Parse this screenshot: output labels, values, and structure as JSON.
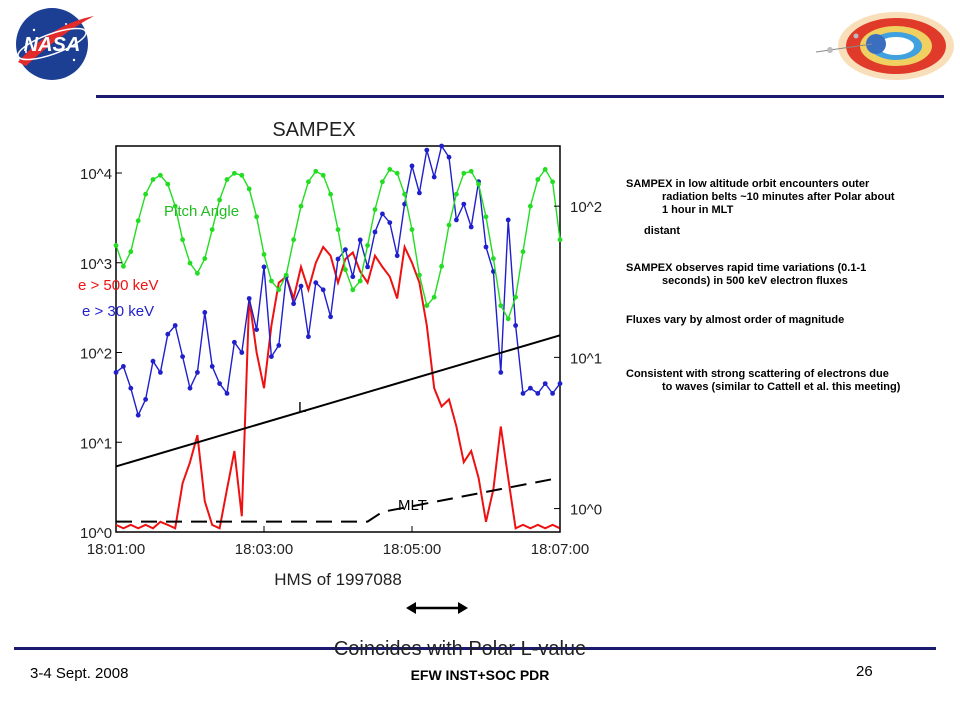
{
  "logos": {
    "nasa_text": "NASA"
  },
  "notes": [
    {
      "first": "SAMPEX in low altitude orbit encounters  outer",
      "rest": [
        "radiation belts ~10 minutes after Polar about",
        "1 hour in MLT"
      ],
      "extra": "distant"
    },
    {
      "first": "SAMPEX observes rapid time variations (0.1-1",
      "rest": [
        "seconds) in 500 keV electron fluxes"
      ]
    },
    {
      "first": "Fluxes vary by almost order of magnitude",
      "rest": []
    },
    {
      "first": "Consistent with strong scattering of electrons due",
      "rest": [
        "to waves (similar to Cattell et al. this meeting)"
      ]
    }
  ],
  "caption": "Coincides  with Polar L-value",
  "footer": {
    "date": "3-4 Sept. 2008",
    "center": "EFW INST+SOC PDR",
    "page": "26"
  },
  "chart_data": {
    "type": "line",
    "title": "SAMPEX",
    "xlabel": "HMS of 1997088",
    "x_ticks": [
      "18:01:00",
      "18:03:00",
      "18:05:00",
      "18:07:00"
    ],
    "x_range_min": [
      0,
      6
    ],
    "left_axis": {
      "scale": "log",
      "range": [
        1,
        20000
      ],
      "ticks": [
        "10^0",
        "10^1",
        "10^2",
        "10^3",
        "10^4"
      ]
    },
    "right_axis": {
      "scale": "log",
      "range": [
        0.7,
        250
      ],
      "ticks": [
        "10^0",
        "10^1",
        "10^2"
      ]
    },
    "series": [
      {
        "name": "Pitch Angle",
        "color": "#22dd22",
        "axis": "right",
        "marker": "dot",
        "x": [
          0.0,
          0.1,
          0.2,
          0.3,
          0.4,
          0.5,
          0.6,
          0.7,
          0.8,
          0.9,
          1.0,
          1.1,
          1.2,
          1.3,
          1.4,
          1.5,
          1.6,
          1.7,
          1.8,
          1.9,
          2.0,
          2.1,
          2.2,
          2.3,
          2.4,
          2.5,
          2.6,
          2.7,
          2.8,
          2.9,
          3.0,
          3.1,
          3.2,
          3.3,
          3.4,
          3.5,
          3.6,
          3.7,
          3.8,
          3.9,
          4.0,
          4.1,
          4.2,
          4.3,
          4.4,
          4.5,
          4.6,
          4.7,
          4.8,
          4.9,
          5.0,
          5.1,
          5.2,
          5.3,
          5.4,
          5.5,
          5.6,
          5.7,
          5.8,
          5.9,
          6.0
        ],
        "y": [
          55,
          40,
          50,
          80,
          120,
          150,
          160,
          140,
          100,
          60,
          42,
          36,
          45,
          70,
          110,
          150,
          165,
          160,
          130,
          85,
          48,
          32,
          28,
          35,
          60,
          100,
          145,
          170,
          160,
          120,
          70,
          38,
          28,
          32,
          55,
          95,
          145,
          175,
          165,
          120,
          70,
          35,
          22,
          25,
          40,
          75,
          120,
          165,
          170,
          140,
          85,
          45,
          22,
          18,
          25,
          50,
          100,
          150,
          175,
          145,
          60
        ]
      },
      {
        "name": "e > 30 keV",
        "color": "#1f1fcc",
        "axis": "left",
        "marker": "dot",
        "x": [
          0.0,
          0.1,
          0.2,
          0.3,
          0.4,
          0.5,
          0.6,
          0.7,
          0.8,
          0.9,
          1.0,
          1.1,
          1.2,
          1.3,
          1.4,
          1.5,
          1.6,
          1.7,
          1.8,
          1.9,
          2.0,
          2.1,
          2.2,
          2.3,
          2.4,
          2.5,
          2.6,
          2.7,
          2.8,
          2.9,
          3.0,
          3.1,
          3.2,
          3.3,
          3.4,
          3.5,
          3.6,
          3.7,
          3.8,
          3.9,
          4.0,
          4.1,
          4.2,
          4.3,
          4.4,
          4.5,
          4.6,
          4.7,
          4.8,
          4.9,
          5.0,
          5.1,
          5.2,
          5.3,
          5.4,
          5.5,
          5.6,
          5.7,
          5.8,
          5.9,
          6.0
        ],
        "y": [
          60,
          70,
          40,
          20,
          30,
          80,
          60,
          160,
          200,
          90,
          40,
          60,
          280,
          70,
          45,
          35,
          130,
          100,
          400,
          180,
          900,
          90,
          120,
          700,
          350,
          550,
          150,
          600,
          500,
          250,
          1100,
          1400,
          700,
          1800,
          900,
          2200,
          3500,
          2800,
          1200,
          4500,
          12000,
          6000,
          18000,
          9000,
          20000,
          15000,
          3000,
          4500,
          2500,
          8000,
          1500,
          800,
          60,
          3000,
          200,
          35,
          40,
          35,
          45,
          35,
          45
        ]
      },
      {
        "name": "e > 500 keV",
        "color": "#ee1111",
        "axis": "left",
        "marker": "none",
        "x": [
          0.0,
          0.1,
          0.2,
          0.3,
          0.4,
          0.5,
          0.6,
          0.7,
          0.8,
          0.9,
          1.0,
          1.1,
          1.2,
          1.3,
          1.4,
          1.5,
          1.6,
          1.7,
          1.8,
          1.9,
          2.0,
          2.1,
          2.2,
          2.3,
          2.4,
          2.5,
          2.6,
          2.7,
          2.8,
          2.9,
          3.0,
          3.1,
          3.2,
          3.3,
          3.4,
          3.5,
          3.6,
          3.7,
          3.8,
          3.9,
          4.0,
          4.1,
          4.2,
          4.3,
          4.4,
          4.5,
          4.6,
          4.7,
          4.8,
          4.9,
          5.0,
          5.1,
          5.2,
          5.3,
          5.4,
          5.5,
          5.6,
          5.7,
          5.8,
          5.9,
          6.0
        ],
        "y": [
          1.2,
          1.1,
          1.2,
          1.1,
          1.2,
          1.1,
          1.3,
          1.2,
          1.1,
          3.5,
          6,
          12,
          2.2,
          1.2,
          1.1,
          3,
          8,
          1.5,
          400,
          100,
          40,
          200,
          600,
          700,
          400,
          900,
          500,
          1000,
          1500,
          1200,
          600,
          1100,
          1300,
          800,
          600,
          1200,
          900,
          700,
          400,
          1500,
          1000,
          600,
          200,
          40,
          25,
          30,
          15,
          6,
          8,
          4,
          1.3,
          3,
          15,
          4,
          1.1,
          1.2,
          1.1,
          1.2,
          1.1,
          1.2,
          1.1
        ]
      },
      {
        "name": "L",
        "color": "#000000",
        "axis": "right",
        "marker": "none",
        "x": [
          0,
          6
        ],
        "y": [
          1.9,
          14
        ]
      },
      {
        "name": "MLT",
        "color": "#000000",
        "axis": "right",
        "marker": "none",
        "dashed": true,
        "x": [
          0,
          3.4,
          3.6,
          6
        ],
        "y": [
          0.82,
          0.82,
          0.95,
          1.6
        ]
      }
    ],
    "annotations": [
      "Pitch Angle",
      "e > 500 keV",
      "e > 30 keV",
      "L",
      "MLT"
    ],
    "grid": false
  }
}
